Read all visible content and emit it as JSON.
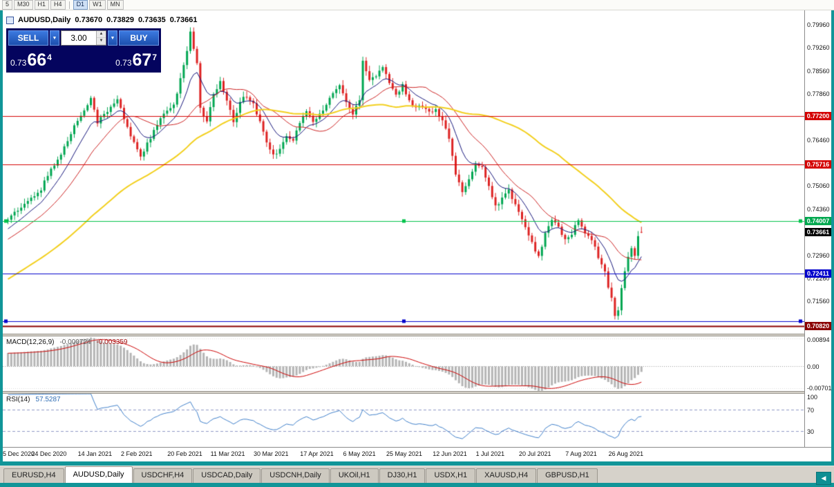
{
  "window": {
    "colors": {
      "frame": "#119598",
      "panel_bg": "#04045e",
      "trade_button": "#2a62c8",
      "axis_text": "#111111"
    }
  },
  "toolbar": {
    "buttons": [
      {
        "label": "5"
      },
      {
        "label": "M30"
      },
      {
        "label": "H1"
      },
      {
        "label": "H4",
        "sep_after": true
      },
      {
        "label": "D1",
        "active": true
      },
      {
        "label": "W1"
      },
      {
        "label": "MN"
      }
    ]
  },
  "header": {
    "symbol": "AUDUSD,Daily",
    "open": "0.73670",
    "high": "0.73829",
    "low": "0.73635",
    "close": "0.73661"
  },
  "trade_panel": {
    "sell_label": "SELL",
    "buy_label": "BUY",
    "volume": "3.00",
    "dropdown_glyph": "▼",
    "spin_up": "▲",
    "spin_down": "▼",
    "sell_price": {
      "prefix": "0.73",
      "pips": "66",
      "point": "4"
    },
    "buy_price": {
      "prefix": "0.73",
      "pips": "67",
      "point": "7"
    }
  },
  "price_axis": {
    "ticks": [
      "0.79960",
      "0.79260",
      "0.78560",
      "0.77860",
      "0.76460",
      "0.75060",
      "0.74360",
      "0.72960",
      "0.72260",
      "0.71560"
    ],
    "badges": [
      {
        "text": "0.77200",
        "color": "#d40000"
      },
      {
        "text": "0.75716",
        "color": "#d40000"
      },
      {
        "text": "0.74007",
        "color": "#00a84f"
      },
      {
        "text": "0.73661",
        "color": "#000000"
      },
      {
        "text": "0.72411",
        "color": "#0000cc"
      },
      {
        "text": "0.70820",
        "color": "#8b0000"
      }
    ]
  },
  "macd_panel": {
    "title": "MACD(12,26,9)",
    "value_main": "-0.000724",
    "value_signal": "-0.003359",
    "axis": [
      {
        "v": 0.00894,
        "text": "0.00894"
      },
      {
        "v": 0.0,
        "text": "0.00"
      },
      {
        "v": -0.00701,
        "text": "-0.00701"
      }
    ]
  },
  "rsi_panel": {
    "title": "RSI(14)",
    "value": "57.5287",
    "axis": [
      {
        "v": 100,
        "text": "100"
      },
      {
        "v": 70,
        "text": "70"
      },
      {
        "v": 30,
        "text": "30"
      }
    ]
  },
  "x_axis": {
    "labels": [
      {
        "i": 0,
        "text": "5 Dec 2020"
      },
      {
        "i": 13,
        "text": "24 Dec 2020"
      },
      {
        "i": 27,
        "text": "14 Jan 2021"
      },
      {
        "i": 40,
        "text": "2 Feb 2021"
      },
      {
        "i": 54,
        "text": "20 Feb 2021"
      },
      {
        "i": 67,
        "text": "11 Mar 2021"
      },
      {
        "i": 80,
        "text": "30 Mar 2021"
      },
      {
        "i": 94,
        "text": "17 Apr 2021"
      },
      {
        "i": 107,
        "text": "6 May 2021"
      },
      {
        "i": 120,
        "text": "25 May 2021"
      },
      {
        "i": 134,
        "text": "12 Jun 2021"
      },
      {
        "i": 147,
        "text": "1 Jul 2021"
      },
      {
        "i": 160,
        "text": "20 Jul 2021"
      },
      {
        "i": 174,
        "text": "7 Aug 2021"
      },
      {
        "i": 187,
        "text": "26 Aug 2021"
      }
    ]
  },
  "tabs": {
    "items": [
      {
        "label": "EURUSD,H4"
      },
      {
        "label": "AUDUSD,Daily",
        "active": true
      },
      {
        "label": "USDCHF,H4"
      },
      {
        "label": "USDCAD,Daily"
      },
      {
        "label": "USDCNH,Daily"
      },
      {
        "label": "UKOil,H1"
      },
      {
        "label": "DJ30,H1"
      },
      {
        "label": "USDX,H1"
      },
      {
        "label": "XAUUSD,H4"
      },
      {
        "label": "GBPUSD,H1"
      }
    ]
  },
  "scroll": {
    "left_arrow": "◀"
  },
  "chart_data": [
    {
      "type": "candlestick",
      "title": "AUDUSD,Daily",
      "bars": 192,
      "y_min": 0.7058,
      "y_max": 0.804,
      "ohlc_current": {
        "open": 0.7367,
        "high": 0.73829,
        "low": 0.73635,
        "close": 0.73661
      },
      "warmup": {
        "bars": 60,
        "from": 0.704,
        "to": 0.7395
      },
      "close_anchors": [
        [
          0,
          0.7405
        ],
        [
          3,
          0.7432
        ],
        [
          6,
          0.7458
        ],
        [
          10,
          0.7498
        ],
        [
          13,
          0.7558
        ],
        [
          16,
          0.7602
        ],
        [
          20,
          0.7688
        ],
        [
          23,
          0.7742
        ],
        [
          25,
          0.7772
        ],
        [
          27,
          0.7702
        ],
        [
          30,
          0.7732
        ],
        [
          33,
          0.777
        ],
        [
          36,
          0.7682
        ],
        [
          40,
          0.7598
        ],
        [
          43,
          0.7652
        ],
        [
          46,
          0.7712
        ],
        [
          50,
          0.7752
        ],
        [
          53,
          0.7868
        ],
        [
          54,
          0.7918
        ],
        [
          55,
          0.7975
        ],
        [
          57,
          0.7882
        ],
        [
          58,
          0.7742
        ],
        [
          60,
          0.7702
        ],
        [
          62,
          0.7782
        ],
        [
          64,
          0.7822
        ],
        [
          66,
          0.7762
        ],
        [
          68,
          0.7702
        ],
        [
          70,
          0.7762
        ],
        [
          72,
          0.7782
        ],
        [
          74,
          0.7752
        ],
        [
          76,
          0.7702
        ],
        [
          78,
          0.7642
        ],
        [
          80,
          0.7598
        ],
        [
          82,
          0.7622
        ],
        [
          84,
          0.7662
        ],
        [
          86,
          0.7642
        ],
        [
          88,
          0.7702
        ],
        [
          90,
          0.7732
        ],
        [
          92,
          0.7702
        ],
        [
          94,
          0.7722
        ],
        [
          96,
          0.7752
        ],
        [
          98,
          0.7792
        ],
        [
          100,
          0.7812
        ],
        [
          102,
          0.7762
        ],
        [
          104,
          0.7722
        ],
        [
          106,
          0.7772
        ],
        [
          107,
          0.7888
        ],
        [
          109,
          0.7832
        ],
        [
          111,
          0.7842
        ],
        [
          113,
          0.7872
        ],
        [
          115,
          0.7822
        ],
        [
          117,
          0.7782
        ],
        [
          119,
          0.7812
        ],
        [
          121,
          0.7762
        ],
        [
          123,
          0.7742
        ],
        [
          125,
          0.7752
        ],
        [
          127,
          0.7732
        ],
        [
          129,
          0.7742
        ],
        [
          131,
          0.7702
        ],
        [
          133,
          0.7652
        ],
        [
          135,
          0.7542
        ],
        [
          137,
          0.7482
        ],
        [
          139,
          0.7532
        ],
        [
          141,
          0.7576
        ],
        [
          143,
          0.7562
        ],
        [
          145,
          0.7512
        ],
        [
          147,
          0.7442
        ],
        [
          149,
          0.7472
        ],
        [
          151,
          0.7492
        ],
        [
          153,
          0.7452
        ],
        [
          155,
          0.7402
        ],
        [
          157,
          0.7352
        ],
        [
          159,
          0.7312
        ],
        [
          160,
          0.7292
        ],
        [
          162,
          0.7362
        ],
        [
          164,
          0.7402
        ],
        [
          166,
          0.7382
        ],
        [
          168,
          0.7342
        ],
        [
          170,
          0.7362
        ],
        [
          172,
          0.7402
        ],
        [
          174,
          0.7362
        ],
        [
          176,
          0.7342
        ],
        [
          178,
          0.7292
        ],
        [
          180,
          0.7242
        ],
        [
          182,
          0.7162
        ],
        [
          183,
          0.7108
        ],
        [
          184,
          0.7132
        ],
        [
          185,
          0.7202
        ],
        [
          186,
          0.7252
        ],
        [
          187,
          0.7292
        ],
        [
          188,
          0.7312
        ],
        [
          189,
          0.7295
        ],
        [
          190,
          0.7352
        ],
        [
          191,
          0.73661
        ]
      ],
      "levels": [
        {
          "price": 0.772,
          "color": "#d40000",
          "width": 1
        },
        {
          "price": 0.75716,
          "color": "#d40000",
          "width": 1
        },
        {
          "price": 0.74007,
          "color": "#00c24a",
          "width": 1,
          "handles": true
        },
        {
          "price": 0.72411,
          "color": "#0000cc",
          "width": 1
        },
        {
          "price": 0.7095,
          "color": "#0000cc",
          "width": 1,
          "handles": true
        },
        {
          "price": 0.7082,
          "color": "#8b0000",
          "width": 2
        }
      ],
      "moving_averages": [
        {
          "type": "EMA",
          "period": 10,
          "color": "#14147a",
          "width": 1
        },
        {
          "type": "SMA",
          "period": 20,
          "color": "#cc2222",
          "width": 1
        },
        {
          "type": "SMA",
          "period": 60,
          "color": "#f2cf1d",
          "width": 2
        }
      ],
      "colors": {
        "up": "#00A651",
        "down": "#DD2222"
      }
    },
    {
      "type": "macd",
      "params": [
        12,
        26,
        9
      ],
      "y_min": -0.0078,
      "y_max": 0.0095,
      "histogram_color": "#b4b4b4",
      "signal_color": "#cc0000",
      "current": {
        "main": -0.000724,
        "signal": -0.003359
      }
    },
    {
      "type": "rsi",
      "period": 14,
      "y_min": 0,
      "y_max": 100,
      "color": "#3d7ec9",
      "levels": [
        70,
        30
      ],
      "current": 57.5287
    }
  ]
}
